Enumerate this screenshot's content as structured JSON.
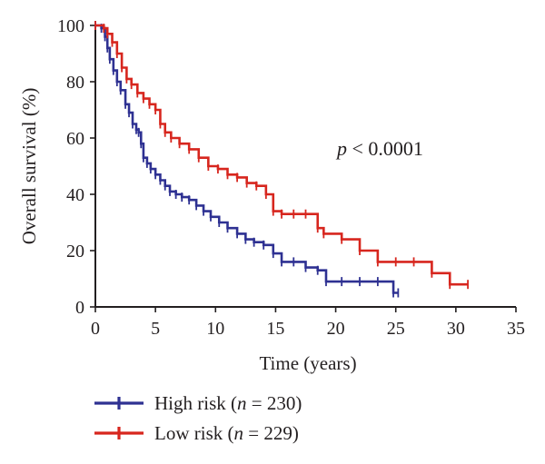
{
  "chart_data": {
    "type": "line",
    "subtype": "kaplan-meier",
    "xlabel": "Time (years)",
    "ylabel": "Overall survival (%)",
    "xlim": [
      0,
      35
    ],
    "ylim": [
      0,
      100
    ],
    "xticks": [
      "0",
      "5",
      "10",
      "15",
      "20",
      "25",
      "30",
      "35"
    ],
    "yticks": [
      "0",
      "20",
      "40",
      "60",
      "80",
      "100"
    ],
    "grid": false,
    "legend_position": "bottom-left",
    "annotation": {
      "italic": "p",
      "rest": " < 0.0001"
    },
    "series": [
      {
        "name": "High risk",
        "legend_prefix": "High risk (",
        "legend_italic": "n",
        "legend_suffix": " = 230)",
        "color": "#2e3192",
        "x": [
          0,
          0.5,
          0.8,
          1.0,
          1.2,
          1.5,
          1.8,
          2.1,
          2.5,
          2.8,
          3.1,
          3.4,
          3.6,
          3.8,
          4.0,
          4.3,
          4.6,
          5.0,
          5.4,
          5.8,
          6.2,
          6.7,
          7.2,
          7.8,
          8.4,
          9.0,
          9.6,
          10.3,
          11.0,
          11.8,
          12.5,
          13.2,
          14.0,
          14.8,
          15.5,
          16.5,
          17.5,
          18.5,
          19.2,
          20.5,
          22.0,
          23.5,
          24.8,
          25.2
        ],
        "y": [
          100,
          99,
          96,
          92,
          88,
          84,
          80,
          77,
          72,
          69,
          65,
          63,
          62,
          58,
          53,
          51,
          49,
          47,
          45,
          43,
          41,
          40,
          39,
          38,
          36,
          34,
          32,
          30,
          28,
          26,
          24,
          23,
          22,
          19,
          16,
          16,
          14,
          13,
          9,
          9,
          9,
          9,
          5,
          5
        ]
      },
      {
        "name": "Low risk",
        "legend_prefix": "Low risk (",
        "legend_italic": "n",
        "legend_suffix": " = 229)",
        "color": "#d7261e",
        "x": [
          0,
          0.7,
          1.0,
          1.4,
          1.8,
          2.2,
          2.6,
          3.0,
          3.5,
          4.0,
          4.5,
          5.0,
          5.4,
          5.8,
          6.3,
          7.0,
          7.8,
          8.6,
          9.4,
          10.2,
          11.0,
          11.8,
          12.6,
          13.4,
          14.2,
          14.8,
          15.5,
          16.5,
          17.5,
          18.5,
          19.0,
          20.5,
          22.0,
          23.5,
          25.0,
          26.5,
          28.0,
          29.5,
          31.0
        ],
        "y": [
          100,
          99,
          97,
          94,
          90,
          85,
          81,
          79,
          76,
          74,
          72,
          70,
          65,
          62,
          60,
          58,
          56,
          53,
          50,
          49,
          47,
          46,
          44,
          43,
          40,
          34,
          33,
          33,
          33,
          28,
          26,
          24,
          20,
          16,
          16,
          16,
          12,
          8,
          8
        ]
      }
    ]
  }
}
